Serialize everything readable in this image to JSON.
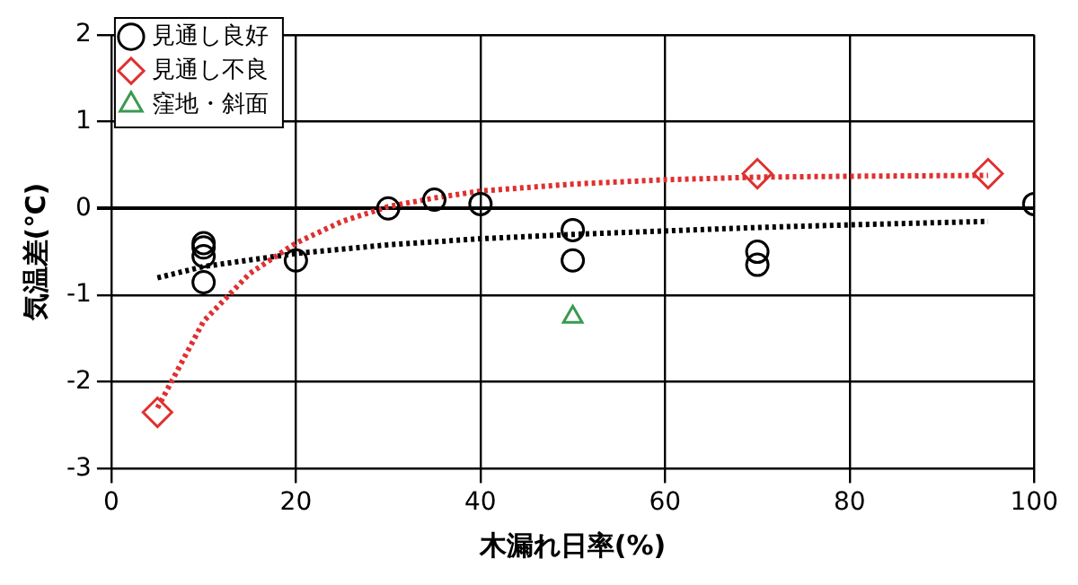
{
  "chart_data": {
    "type": "scatter",
    "xlabel": "木漏れ日率(%)",
    "ylabel": "気温差(℃)",
    "xlim": [
      0,
      100
    ],
    "xticks": [
      0,
      20,
      40,
      60,
      80,
      100
    ],
    "ylim": [
      -3,
      2
    ],
    "yticks": [
      -3,
      -2,
      -1,
      0,
      1,
      2
    ],
    "grid": true,
    "legend": "top left",
    "series": [
      {
        "name": "見通し良好",
        "marker": "circle",
        "color": "#000000",
        "x": [
          10,
          10,
          10,
          10,
          20,
          30,
          35,
          40,
          50,
          50,
          70,
          70,
          100
        ],
        "values": [
          -0.4,
          -0.45,
          -0.55,
          -0.85,
          -0.6,
          0,
          0.1,
          0.05,
          -0.25,
          -0.6,
          -0.5,
          -0.65,
          0.05
        ]
      },
      {
        "name": "見通し不良",
        "marker": "diamond",
        "color": "#e03030",
        "x": [
          5,
          70,
          95
        ],
        "values": [
          -2.35,
          0.4,
          0.4
        ]
      },
      {
        "name": "窪地・斜面",
        "marker": "triangle",
        "color": "#3a9a50",
        "x": [
          50
        ],
        "values": [
          -1.25
        ]
      },
      {
        "type": "line",
        "line_style": "dotted",
        "marker": "none",
        "color": "#e03030",
        "x": [
          5,
          10,
          15,
          20,
          25,
          30,
          35,
          40,
          50,
          60,
          70,
          80,
          95
        ],
        "values": [
          -2.3,
          -1.3,
          -0.75,
          -0.4,
          -0.15,
          0.02,
          0.12,
          0.2,
          0.28,
          0.33,
          0.36,
          0.37,
          0.38
        ]
      },
      {
        "type": "line",
        "line_style": "dotted",
        "marker": "none",
        "color": "#000000",
        "x": [
          5,
          10,
          20,
          30,
          40,
          50,
          60,
          70,
          80,
          95
        ],
        "values": [
          -0.8,
          -0.67,
          -0.52,
          -0.42,
          -0.35,
          -0.3,
          -0.26,
          -0.22,
          -0.19,
          -0.15
        ]
      }
    ]
  }
}
